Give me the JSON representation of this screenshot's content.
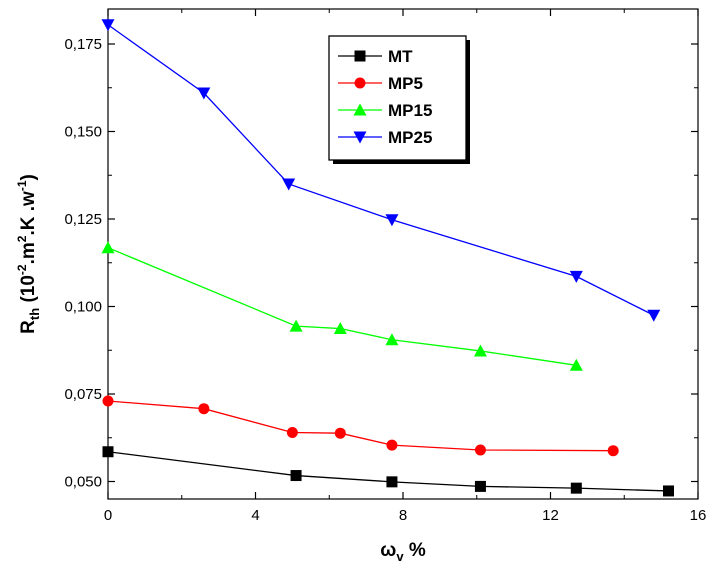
{
  "chart_data": {
    "type": "line",
    "xlabel": "ω",
    "xlabel_sub": "v",
    "xlabel_suffix": " %",
    "ylabel": "R",
    "ylabel_sub": "th",
    "ylabel_rest": " (10",
    "ylabel_exp1": "-2",
    "ylabel_mid1": ".m",
    "ylabel_exp2": "2",
    "ylabel_mid2": ".K .w",
    "ylabel_exp3": "-1",
    "ylabel_end": ")",
    "xlim": [
      0,
      16
    ],
    "ylim": [
      0.045,
      0.185
    ],
    "xticks": [
      0,
      4,
      8,
      12,
      16
    ],
    "xtick_labels": [
      "0",
      "4",
      "8",
      "12",
      "16"
    ],
    "yticks": [
      0.05,
      0.075,
      0.1,
      0.125,
      0.15,
      0.175
    ],
    "ytick_labels": [
      "0,050",
      "0,075",
      "0,100",
      "0,125",
      "0,150",
      "0,175"
    ],
    "grid": false,
    "legend_position": "top-center",
    "series": [
      {
        "name": "MT",
        "color": "#000000",
        "marker": "square",
        "x": [
          0.0,
          5.1,
          7.7,
          10.1,
          12.7,
          15.2
        ],
        "y": [
          0.0585,
          0.0517,
          0.0499,
          0.0486,
          0.0481,
          0.0473
        ]
      },
      {
        "name": "MP5",
        "color": "#ff0000",
        "marker": "circle",
        "x": [
          0.0,
          2.6,
          5.0,
          6.3,
          7.7,
          10.1,
          13.7
        ],
        "y": [
          0.073,
          0.0708,
          0.064,
          0.0638,
          0.0604,
          0.059,
          0.0588
        ]
      },
      {
        "name": "MP15",
        "color": "#00ff00",
        "marker": "triangle-up",
        "x": [
          0.0,
          5.1,
          6.3,
          7.7,
          10.1,
          12.7
        ],
        "y": [
          0.1168,
          0.0944,
          0.0937,
          0.0905,
          0.0873,
          0.0832
        ]
      },
      {
        "name": "MP25",
        "color": "#0000ff",
        "marker": "triangle-down",
        "x": [
          0.0,
          2.6,
          4.9,
          7.7,
          12.7,
          14.8
        ],
        "y": [
          0.1805,
          0.161,
          0.135,
          0.1248,
          0.1086,
          0.0975
        ]
      }
    ]
  }
}
